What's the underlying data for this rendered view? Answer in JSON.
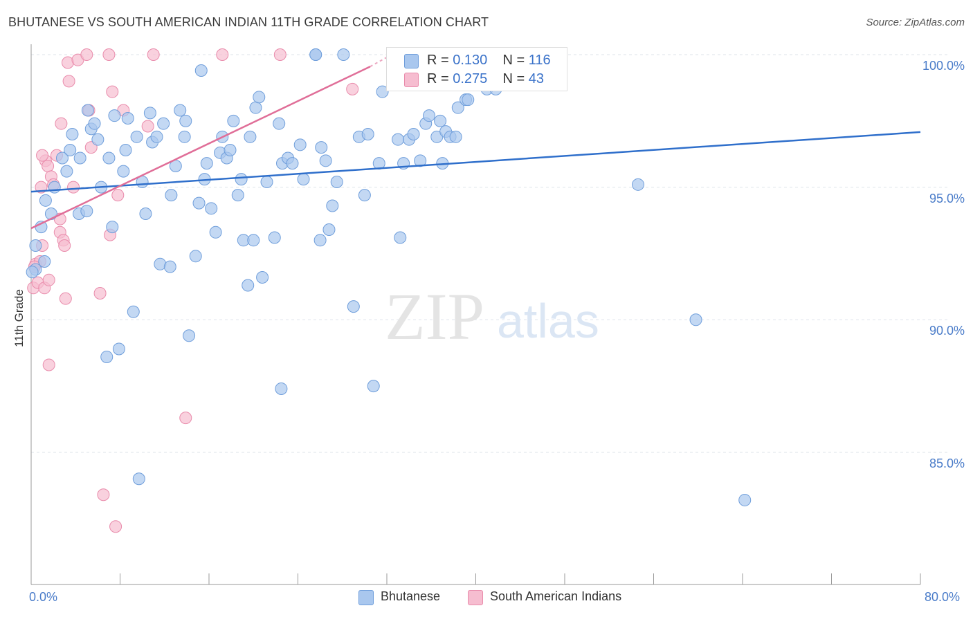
{
  "title": "BHUTANESE VS SOUTH AMERICAN INDIAN 11TH GRADE CORRELATION CHART",
  "source": "Source: ZipAtlas.com",
  "watermark": {
    "zip": "ZIP",
    "atlas": "atlas"
  },
  "colors": {
    "blue_fill": "#a9c7ee",
    "blue_stroke": "#6f9edb",
    "blue_line": "#2f6fcb",
    "pink_fill": "#f6bdd0",
    "pink_stroke": "#e98bab",
    "pink_line": "#e06e98",
    "tick_text": "#4a7cc9",
    "grid": "#dde3ea"
  },
  "legend_top": {
    "rows": [
      {
        "r_label": "R =",
        "r_value": "0.130",
        "n_label": "N =",
        "n_value": "116",
        "series": "blue"
      },
      {
        "r_label": "R =",
        "r_value": "0.275",
        "n_label": "N =",
        "n_value": "43",
        "series": "pink"
      }
    ]
  },
  "legend_bottom": [
    {
      "label": "Bhutanese",
      "series": "blue"
    },
    {
      "label": "South American Indians",
      "series": "pink"
    }
  ],
  "chart_data": {
    "type": "scatter",
    "title": "BHUTANESE VS SOUTH AMERICAN INDIAN 11TH GRADE CORRELATION CHART",
    "xlabel": "",
    "ylabel": "11th Grade",
    "xlim": [
      0,
      80
    ],
    "ylim": [
      80.5,
      100.75
    ],
    "x_tick_labels": [
      "0.0%",
      "80.0%"
    ],
    "y_ticks": [
      100,
      95,
      90,
      85
    ],
    "y_tick_labels": [
      "100.0%",
      "95.0%",
      "90.0%",
      "85.0%"
    ],
    "grid": true,
    "series": [
      {
        "name": "Bhutanese",
        "color": "#a9c7ee",
        "r": 0.13,
        "n": 116,
        "trend": {
          "x": [
            0,
            80
          ],
          "y": [
            94.83,
            97.08
          ]
        },
        "points": [
          [
            0.4,
            92.8
          ],
          [
            0.4,
            91.9
          ],
          [
            0.9,
            93.5
          ],
          [
            1.2,
            92.2
          ],
          [
            1.3,
            94.5
          ],
          [
            1.8,
            94
          ],
          [
            2.1,
            95
          ],
          [
            2.8,
            96.1
          ],
          [
            3.2,
            95.6
          ],
          [
            3.5,
            96.4
          ],
          [
            3.7,
            97
          ],
          [
            4.3,
            94
          ],
          [
            4.4,
            96.1
          ],
          [
            5.0,
            94.1
          ],
          [
            5.1,
            97.9
          ],
          [
            5.4,
            97.2
          ],
          [
            5.7,
            97.4
          ],
          [
            6.0,
            96.8
          ],
          [
            6.3,
            95
          ],
          [
            6.8,
            88.6
          ],
          [
            7.0,
            96.1
          ],
          [
            7.3,
            93.5
          ],
          [
            7.5,
            97.7
          ],
          [
            7.9,
            88.9
          ],
          [
            8.3,
            95.6
          ],
          [
            8.5,
            96.4
          ],
          [
            8.7,
            97.6
          ],
          [
            9.2,
            90.3
          ],
          [
            9.5,
            96.9
          ],
          [
            9.7,
            84
          ],
          [
            10.0,
            95.2
          ],
          [
            10.3,
            94
          ],
          [
            10.7,
            97.8
          ],
          [
            10.9,
            96.7
          ],
          [
            11.3,
            96.9
          ],
          [
            11.6,
            92.1
          ],
          [
            11.9,
            97.4
          ],
          [
            12.5,
            92
          ],
          [
            12.6,
            94.7
          ],
          [
            13.0,
            95.8
          ],
          [
            13.4,
            97.9
          ],
          [
            13.8,
            96.9
          ],
          [
            13.9,
            97.5
          ],
          [
            14.2,
            89.4
          ],
          [
            14.8,
            92.4
          ],
          [
            15.1,
            94.4
          ],
          [
            15.3,
            99.4
          ],
          [
            15.6,
            95.3
          ],
          [
            15.8,
            95.9
          ],
          [
            16.2,
            94.2
          ],
          [
            16.6,
            93.3
          ],
          [
            17.0,
            96.3
          ],
          [
            17.2,
            96.9
          ],
          [
            17.6,
            96.1
          ],
          [
            17.9,
            96.4
          ],
          [
            18.2,
            97.5
          ],
          [
            18.6,
            94.7
          ],
          [
            18.9,
            95.3
          ],
          [
            19.1,
            93
          ],
          [
            19.5,
            91.3
          ],
          [
            19.7,
            96.9
          ],
          [
            20.2,
            98
          ],
          [
            20.5,
            98.4
          ],
          [
            20.8,
            91.6
          ],
          [
            21.2,
            95.2
          ],
          [
            21.9,
            93.1
          ],
          [
            22.3,
            97.4
          ],
          [
            22.5,
            87.4
          ],
          [
            22.6,
            95.9
          ],
          [
            23.1,
            96.1
          ],
          [
            23.5,
            95.9
          ],
          [
            24.2,
            96.6
          ],
          [
            24.5,
            95.3
          ],
          [
            25.6,
            100
          ],
          [
            25.6,
            100
          ],
          [
            26.0,
            93
          ],
          [
            26.1,
            96.5
          ],
          [
            26.5,
            96
          ],
          [
            26.8,
            93.4
          ],
          [
            27.1,
            94.3
          ],
          [
            27.5,
            95.2
          ],
          [
            28.1,
            100
          ],
          [
            29.0,
            90.5
          ],
          [
            29.5,
            96.9
          ],
          [
            30.3,
            97
          ],
          [
            30.0,
            94.7
          ],
          [
            30.8,
            87.5
          ],
          [
            31.3,
            95.9
          ],
          [
            31.6,
            98.6
          ],
          [
            33.0,
            96.8
          ],
          [
            33.2,
            93.1
          ],
          [
            33.5,
            95.9
          ],
          [
            34.0,
            96.8
          ],
          [
            34.4,
            97
          ],
          [
            35.0,
            96
          ],
          [
            35.5,
            97.4
          ],
          [
            35.8,
            97.7
          ],
          [
            36.5,
            96.9
          ],
          [
            36.8,
            97.5
          ],
          [
            37.0,
            95.9
          ],
          [
            37.3,
            97.1
          ],
          [
            37.7,
            96.9
          ],
          [
            38.2,
            96.9
          ],
          [
            38.4,
            98
          ],
          [
            39.1,
            98.3
          ],
          [
            39.3,
            98.3
          ],
          [
            40.5,
            100
          ],
          [
            41.0,
            98.7
          ],
          [
            41.8,
            98.7
          ],
          [
            42.8,
            100
          ],
          [
            43.2,
            100
          ],
          [
            54.6,
            95.1
          ],
          [
            59.8,
            90
          ],
          [
            64.2,
            83.2
          ],
          [
            0.1,
            91.8
          ],
          [
            20.0,
            93
          ]
        ]
      },
      {
        "name": "South American Indians",
        "color": "#f6bdd0",
        "r": 0.275,
        "n": 43,
        "trend": {
          "x": [
            0,
            30.5
          ],
          "y": [
            93.45,
            99.55
          ]
        },
        "trend_dashed": {
          "x": [
            30.5,
            32.0
          ],
          "y": [
            99.55,
            99.9
          ]
        },
        "points": [
          [
            0.2,
            91.2
          ],
          [
            0.4,
            92.1
          ],
          [
            0.6,
            91.4
          ],
          [
            0.9,
            95
          ],
          [
            1.0,
            92.8
          ],
          [
            1.2,
            91.2
          ],
          [
            1.3,
            96
          ],
          [
            1.5,
            95.8
          ],
          [
            1.6,
            91.5
          ],
          [
            1.8,
            95.4
          ],
          [
            2.0,
            95.1
          ],
          [
            2.3,
            96.2
          ],
          [
            2.6,
            93.8
          ],
          [
            2.6,
            93.3
          ],
          [
            2.7,
            97.4
          ],
          [
            2.9,
            93
          ],
          [
            3.0,
            92.8
          ],
          [
            3.1,
            90.8
          ],
          [
            3.3,
            99.7
          ],
          [
            3.4,
            99
          ],
          [
            3.8,
            95
          ],
          [
            4.2,
            99.8
          ],
          [
            5.0,
            100
          ],
          [
            5.2,
            97.9
          ],
          [
            5.4,
            96.5
          ],
          [
            6.2,
            91
          ],
          [
            6.5,
            83.4
          ],
          [
            7.0,
            100
          ],
          [
            7.1,
            93.2
          ],
          [
            7.3,
            98.6
          ],
          [
            7.6,
            82.2
          ],
          [
            7.8,
            94.7
          ],
          [
            8.3,
            97.9
          ],
          [
            10.5,
            97.3
          ],
          [
            11.0,
            100
          ],
          [
            13.9,
            86.3
          ],
          [
            17.2,
            100
          ],
          [
            22.4,
            100
          ],
          [
            28.9,
            98.7
          ],
          [
            1.6,
            88.3
          ],
          [
            0.8,
            92.2
          ],
          [
            1.0,
            96.2
          ],
          [
            0.3,
            92
          ]
        ]
      }
    ]
  }
}
